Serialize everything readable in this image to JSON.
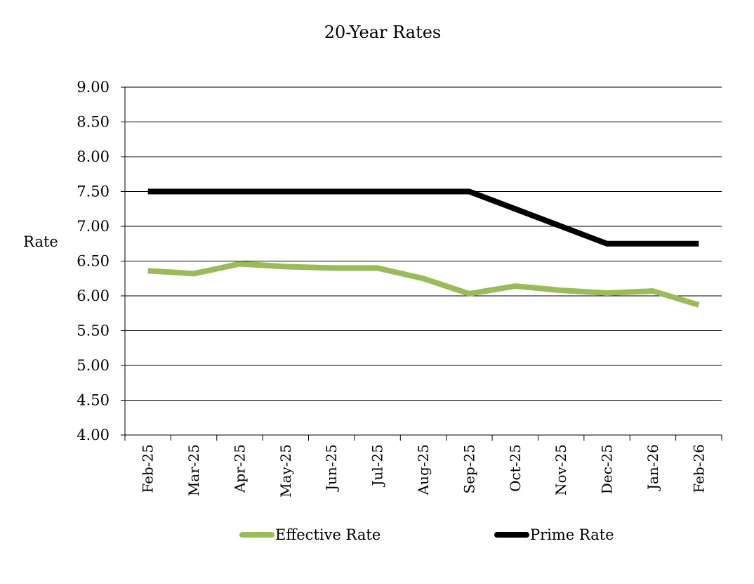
{
  "chart_data": {
    "type": "line",
    "title": "20-Year Rates",
    "xlabel": "",
    "ylabel": "Rate",
    "categories": [
      "Feb-25",
      "Mar-25",
      "Apr-25",
      "May-25",
      "Jun-25",
      "Jul-25",
      "Aug-25",
      "Sep-25",
      "Oct-25",
      "Nov-25",
      "Dec-25",
      "Jan-26",
      "Feb-26"
    ],
    "ylim": [
      4.0,
      9.0
    ],
    "yticks": [
      "4.00",
      "4.50",
      "5.00",
      "5.50",
      "6.00",
      "6.50",
      "7.00",
      "7.50",
      "8.00",
      "8.50",
      "9.00"
    ],
    "grid": "horizontal",
    "legend_position": "bottom",
    "series": [
      {
        "name": "Effective Rate",
        "color": "#9bbb59",
        "values": [
          6.36,
          6.32,
          6.46,
          6.42,
          6.4,
          6.4,
          6.25,
          6.03,
          6.14,
          6.08,
          6.04,
          6.07,
          5.87
        ]
      },
      {
        "name": "Prime Rate",
        "color": "#000000",
        "values": [
          7.5,
          7.5,
          7.5,
          7.5,
          7.5,
          7.5,
          7.5,
          7.5,
          7.25,
          7.0,
          6.75,
          6.75,
          6.75
        ]
      }
    ]
  }
}
